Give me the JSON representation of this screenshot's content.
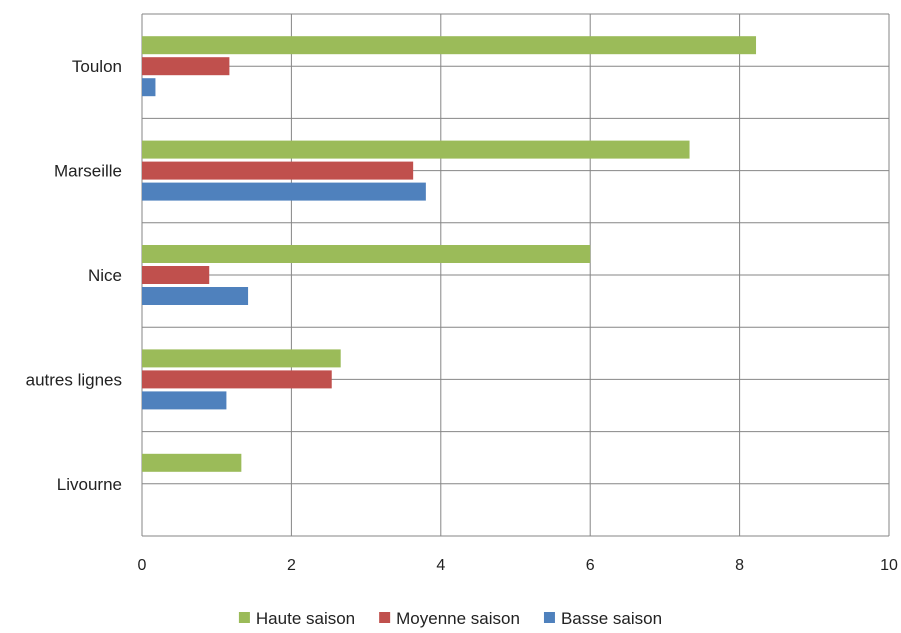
{
  "chart_data": {
    "type": "bar",
    "orientation": "horizontal",
    "categories": [
      "Toulon",
      "Marseille",
      "Nice",
      "autres lignes",
      "Livourne"
    ],
    "series": [
      {
        "name": "Haute saison",
        "color": "#9BBB59",
        "values": [
          8.22,
          7.33,
          6.0,
          2.66,
          1.33
        ]
      },
      {
        "name": "Moyenne saison",
        "color": "#C0504D",
        "values": [
          1.17,
          3.63,
          0.9,
          2.54,
          0
        ]
      },
      {
        "name": "Basse saison",
        "color": "#4F81BD",
        "values": [
          0.18,
          3.8,
          1.42,
          1.13,
          0
        ]
      }
    ],
    "xlim": [
      0,
      10
    ],
    "xticks": [
      "0",
      "2",
      "4",
      "6",
      "8",
      "10"
    ],
    "grid": true,
    "legend": "bottom"
  }
}
